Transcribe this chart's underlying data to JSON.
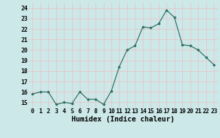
{
  "x": [
    0,
    1,
    2,
    3,
    4,
    5,
    6,
    7,
    8,
    9,
    10,
    11,
    12,
    13,
    14,
    15,
    16,
    17,
    18,
    19,
    20,
    21,
    22,
    23
  ],
  "y": [
    15.8,
    16.0,
    16.0,
    14.8,
    15.0,
    14.9,
    16.0,
    15.3,
    15.3,
    14.8,
    16.1,
    18.4,
    20.0,
    20.4,
    22.2,
    22.1,
    22.5,
    23.8,
    23.1,
    20.5,
    20.4,
    20.0,
    19.3,
    18.6
  ],
  "xlabel": "Humidex (Indice chaleur)",
  "xlim": [
    -0.5,
    23.5
  ],
  "ylim": [
    14.5,
    24.5
  ],
  "yticks": [
    15,
    16,
    17,
    18,
    19,
    20,
    21,
    22,
    23,
    24
  ],
  "xtick_labels": [
    "0",
    "1",
    "2",
    "3",
    "4",
    "5",
    "6",
    "7",
    "8",
    "9",
    "10",
    "11",
    "12",
    "13",
    "14",
    "15",
    "16",
    "17",
    "18",
    "19",
    "20",
    "21",
    "22",
    "23"
  ],
  "line_color": "#2d6e63",
  "marker_color": "#2d6e63",
  "bg_color": "#cce8e8",
  "grid_color": "#e8c8c8",
  "tick_fontsize": 6.0,
  "xlabel_fontsize": 7.5
}
